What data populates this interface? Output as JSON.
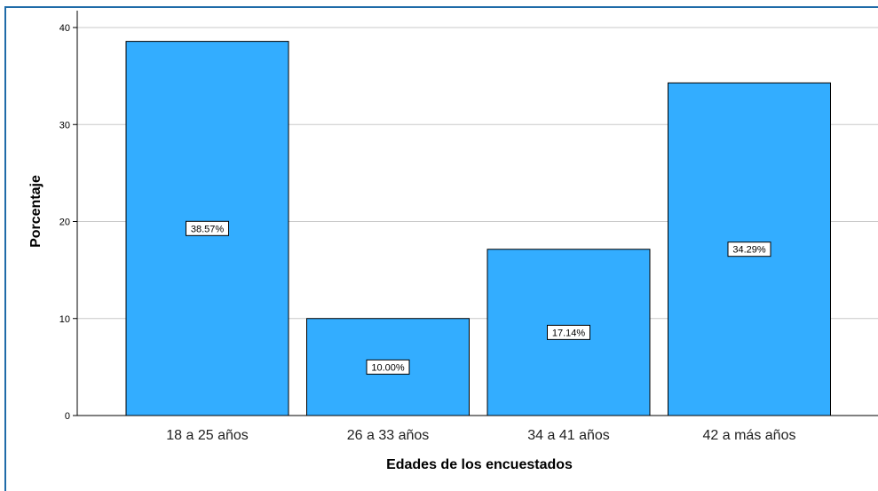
{
  "chart_data": {
    "type": "bar",
    "categories": [
      "18 a 25 años",
      "26 a 33 años",
      "34 a 41 años",
      "42 a más años"
    ],
    "values": [
      38.57,
      10.0,
      17.14,
      34.29
    ],
    "data_labels": [
      "38.57%",
      "10.00%",
      "17.14%",
      "34.29%"
    ],
    "xlabel": "Edades de los encuestados",
    "ylabel": "Porcentaje",
    "ylim": [
      0,
      40
    ],
    "yticks": [
      0,
      10,
      20,
      30,
      40
    ],
    "grid": true,
    "bar_color": "#33adff",
    "bar_border_color": "#000000",
    "frame_color": "#1f6ba8"
  }
}
